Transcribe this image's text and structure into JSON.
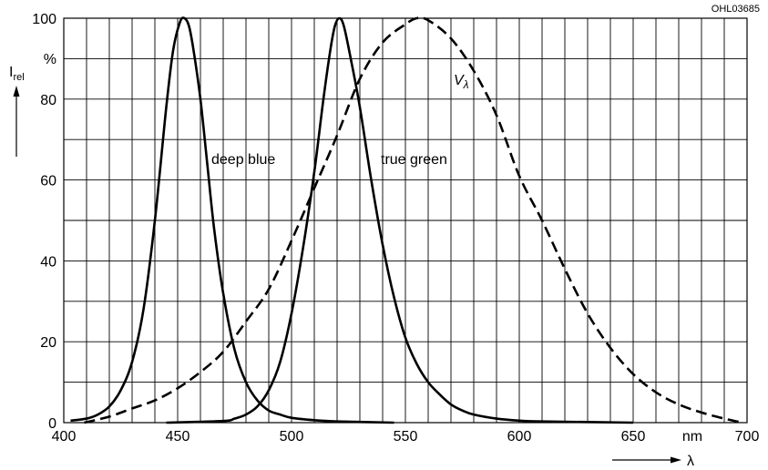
{
  "chart_data": {
    "type": "line",
    "document_code": "OHL03685",
    "ylabel": {
      "main": "I",
      "sub": "rel"
    },
    "ylabel_unit": "%",
    "xlabel": "λ",
    "xlabel_unit": "nm",
    "xlim": [
      400,
      700
    ],
    "ylim": [
      0,
      100
    ],
    "x_ticks": [
      400,
      450,
      500,
      550,
      600,
      650,
      700
    ],
    "x_tick_labels": [
      "400",
      "450",
      "500",
      "550",
      "600",
      "650",
      "700"
    ],
    "y_ticks": [
      0,
      20,
      40,
      60,
      80,
      100
    ],
    "y_tick_labels": [
      "0",
      "20",
      "40",
      "60",
      "80",
      "100"
    ],
    "grid": {
      "x_step": 10,
      "y_step": 10
    },
    "series": [
      {
        "name": "deep blue",
        "style": "solid",
        "points": [
          [
            403,
            0.5
          ],
          [
            410,
            1
          ],
          [
            415,
            2
          ],
          [
            420,
            4
          ],
          [
            425,
            8
          ],
          [
            430,
            15
          ],
          [
            435,
            28
          ],
          [
            440,
            50
          ],
          [
            445,
            78
          ],
          [
            448,
            92
          ],
          [
            451,
            99
          ],
          [
            453,
            100
          ],
          [
            455,
            98
          ],
          [
            457,
            92
          ],
          [
            460,
            80
          ],
          [
            463,
            64
          ],
          [
            466,
            48
          ],
          [
            470,
            32
          ],
          [
            475,
            18
          ],
          [
            480,
            10
          ],
          [
            485,
            5.5
          ],
          [
            490,
            3
          ],
          [
            495,
            2
          ],
          [
            500,
            1.2
          ],
          [
            510,
            0.6
          ],
          [
            520,
            0.3
          ],
          [
            545,
            0
          ]
        ]
      },
      {
        "name": "true green",
        "style": "solid",
        "points": [
          [
            445,
            0
          ],
          [
            470,
            0.4
          ],
          [
            475,
            1
          ],
          [
            480,
            2
          ],
          [
            485,
            4
          ],
          [
            490,
            8
          ],
          [
            495,
            15
          ],
          [
            500,
            27
          ],
          [
            505,
            43
          ],
          [
            510,
            62
          ],
          [
            514,
            80
          ],
          [
            517,
            92
          ],
          [
            519,
            98
          ],
          [
            521,
            100
          ],
          [
            523,
            98
          ],
          [
            526,
            90
          ],
          [
            530,
            78
          ],
          [
            535,
            60
          ],
          [
            540,
            44
          ],
          [
            545,
            31
          ],
          [
            550,
            21
          ],
          [
            555,
            14.5
          ],
          [
            560,
            10
          ],
          [
            565,
            7
          ],
          [
            570,
            4.5
          ],
          [
            575,
            3
          ],
          [
            580,
            2
          ],
          [
            590,
            1
          ],
          [
            600,
            0.5
          ],
          [
            610,
            0.3
          ],
          [
            650,
            0
          ]
        ]
      },
      {
        "name": "V_λ",
        "label_main": "V",
        "label_sub": "λ",
        "style": "dashed",
        "points": [
          [
            409,
            0
          ],
          [
            420,
            1.5
          ],
          [
            430,
            3.5
          ],
          [
            440,
            5.5
          ],
          [
            450,
            8.5
          ],
          [
            460,
            12.5
          ],
          [
            470,
            17.5
          ],
          [
            480,
            25
          ],
          [
            490,
            33
          ],
          [
            500,
            45
          ],
          [
            510,
            58
          ],
          [
            520,
            71
          ],
          [
            530,
            85
          ],
          [
            540,
            94
          ],
          [
            550,
            98.5
          ],
          [
            555,
            100
          ],
          [
            560,
            99.5
          ],
          [
            570,
            95
          ],
          [
            580,
            87
          ],
          [
            590,
            76
          ],
          [
            600,
            61
          ],
          [
            610,
            50
          ],
          [
            620,
            38
          ],
          [
            630,
            27
          ],
          [
            640,
            18.5
          ],
          [
            650,
            12
          ],
          [
            660,
            7.5
          ],
          [
            670,
            4.5
          ],
          [
            680,
            2.5
          ],
          [
            690,
            1
          ],
          [
            698,
            0
          ]
        ]
      }
    ]
  }
}
